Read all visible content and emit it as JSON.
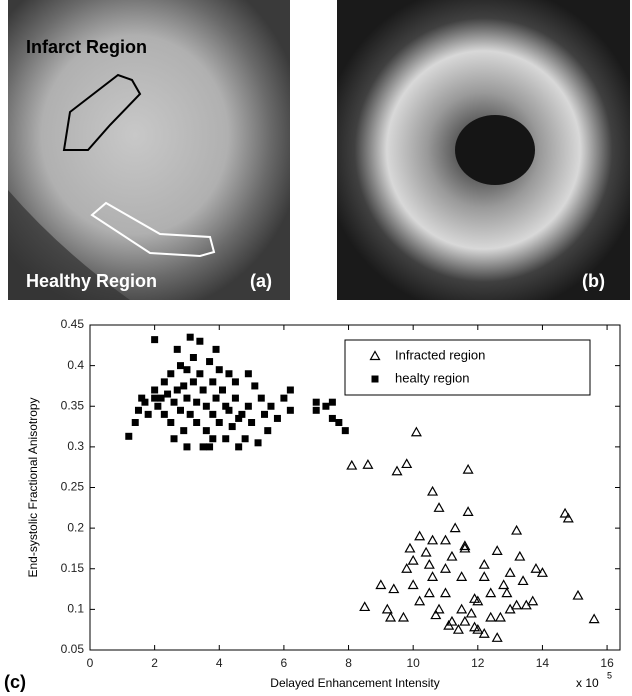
{
  "panels": [
    {
      "label": "(a)",
      "annotations": [
        "Infarct Region",
        "Healthy Region"
      ]
    },
    {
      "label": "(b)"
    }
  ],
  "chart_data": {
    "type": "scatter",
    "panel_label": "(c)",
    "x_label": "Delayed Enhancement Intensity",
    "y_label": "End-systolic Fractional Anisotropy",
    "x_multiplier": "x 10",
    "x_multiplier_exponent": "5",
    "xlim": [
      0,
      16.4
    ],
    "ylim": [
      0.05,
      0.45
    ],
    "xticks": [
      0,
      2,
      4,
      6,
      8,
      10,
      12,
      14,
      16
    ],
    "yticks": [
      0.05,
      0.1,
      0.15,
      0.2,
      0.25,
      0.3,
      0.35,
      0.4,
      0.45
    ],
    "legend": "upper right",
    "series": [
      {
        "name": "Infracted region",
        "color": "#000000",
        "marker": "triangle",
        "x": [
          8.1,
          8.6,
          9.5,
          9.8,
          10.1,
          11.7,
          10.6,
          10.8,
          11.7,
          14.7,
          14.8,
          11.3,
          13.2,
          10.2,
          10.6,
          9.9,
          10.0,
          10.4,
          11.0,
          11.6,
          11.6,
          12.6,
          9.8,
          10.5,
          11.2,
          12.2,
          13.3,
          9.0,
          9.4,
          10.0,
          10.6,
          11.0,
          11.5,
          12.2,
          13.0,
          13.8,
          14.0,
          8.5,
          9.2,
          9.3,
          9.7,
          10.2,
          10.5,
          10.8,
          11.0,
          11.2,
          11.5,
          11.6,
          11.8,
          11.9,
          12.0,
          12.2,
          12.4,
          12.6,
          12.8,
          12.9,
          13.0,
          13.2,
          13.4,
          13.5,
          13.7,
          12.7,
          11.4,
          11.1,
          12.0,
          15.1,
          15.6,
          11.9,
          10.7,
          12.4
        ],
        "y": [
          0.277,
          0.278,
          0.27,
          0.279,
          0.318,
          0.272,
          0.245,
          0.225,
          0.22,
          0.218,
          0.212,
          0.2,
          0.197,
          0.19,
          0.185,
          0.175,
          0.16,
          0.17,
          0.185,
          0.178,
          0.175,
          0.172,
          0.15,
          0.155,
          0.165,
          0.155,
          0.165,
          0.13,
          0.125,
          0.13,
          0.14,
          0.15,
          0.14,
          0.14,
          0.145,
          0.15,
          0.145,
          0.103,
          0.1,
          0.09,
          0.09,
          0.11,
          0.12,
          0.1,
          0.12,
          0.085,
          0.1,
          0.085,
          0.095,
          0.078,
          0.11,
          0.07,
          0.09,
          0.065,
          0.13,
          0.12,
          0.1,
          0.105,
          0.135,
          0.105,
          0.11,
          0.09,
          0.075,
          0.08,
          0.075,
          0.117,
          0.088,
          0.113,
          0.093,
          0.12
        ]
      },
      {
        "name": "healty region",
        "color": "#000000",
        "marker": "square",
        "x": [
          1.2,
          1.4,
          1.5,
          1.6,
          1.7,
          1.8,
          2.0,
          2.0,
          2.1,
          2.2,
          2.3,
          2.3,
          2.4,
          2.5,
          2.5,
          2.6,
          2.6,
          2.7,
          2.7,
          2.8,
          2.8,
          2.9,
          2.9,
          3.0,
          3.0,
          3.1,
          3.1,
          3.2,
          3.2,
          3.3,
          3.3,
          3.4,
          3.4,
          3.5,
          3.5,
          3.6,
          3.6,
          3.7,
          3.7,
          3.8,
          3.8,
          3.9,
          3.9,
          4.0,
          4.0,
          4.1,
          4.2,
          4.2,
          4.3,
          4.3,
          4.4,
          4.5,
          4.5,
          4.6,
          4.7,
          4.8,
          4.9,
          4.9,
          5.0,
          5.1,
          5.2,
          5.3,
          5.4,
          5.5,
          5.6,
          5.8,
          6.0,
          6.2,
          6.2,
          7.0,
          7.0,
          7.3,
          7.5,
          7.5,
          7.7,
          7.9,
          2.0,
          3.0,
          4.6,
          3.8
        ],
        "y": [
          0.313,
          0.33,
          0.345,
          0.36,
          0.355,
          0.34,
          0.432,
          0.37,
          0.35,
          0.36,
          0.34,
          0.38,
          0.365,
          0.39,
          0.33,
          0.31,
          0.355,
          0.42,
          0.37,
          0.4,
          0.345,
          0.375,
          0.32,
          0.395,
          0.36,
          0.435,
          0.34,
          0.41,
          0.38,
          0.355,
          0.33,
          0.43,
          0.39,
          0.37,
          0.3,
          0.35,
          0.32,
          0.405,
          0.3,
          0.38,
          0.34,
          0.42,
          0.36,
          0.395,
          0.33,
          0.37,
          0.35,
          0.31,
          0.39,
          0.345,
          0.325,
          0.36,
          0.38,
          0.335,
          0.34,
          0.31,
          0.39,
          0.35,
          0.33,
          0.375,
          0.305,
          0.36,
          0.34,
          0.32,
          0.35,
          0.335,
          0.36,
          0.37,
          0.345,
          0.355,
          0.345,
          0.35,
          0.335,
          0.355,
          0.33,
          0.32,
          0.36,
          0.3,
          0.3,
          0.31
        ]
      }
    ]
  }
}
